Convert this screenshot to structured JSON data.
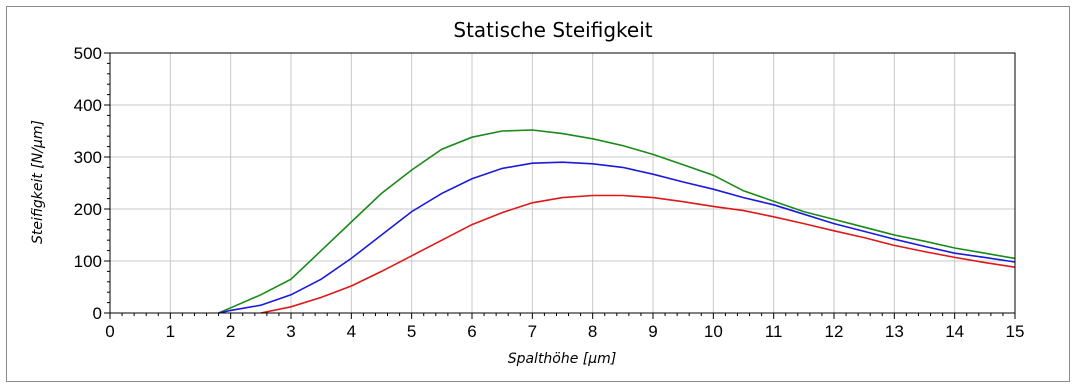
{
  "chart_data": {
    "type": "line",
    "title": "Statische Steifigkeit",
    "xlabel": "Spalthöhe [µm]",
    "ylabel": "Steifigkeit [N/µm]",
    "xlim": [
      0,
      15
    ],
    "ylim": [
      0,
      500
    ],
    "x_ticks": [
      "0",
      "1",
      "2",
      "3",
      "4",
      "5",
      "6",
      "7",
      "8",
      "9",
      "10",
      "11",
      "12",
      "13",
      "14",
      "15"
    ],
    "y_ticks": [
      "0",
      "100",
      "200",
      "300",
      "400",
      "500"
    ],
    "grid": true,
    "legend": "none",
    "series": [
      {
        "color": "#1a8a1a",
        "points": [
          [
            1.8,
            0
          ],
          [
            2,
            10
          ],
          [
            2.5,
            35
          ],
          [
            3,
            65
          ],
          [
            3.5,
            120
          ],
          [
            4,
            175
          ],
          [
            4.5,
            230
          ],
          [
            5,
            275
          ],
          [
            5.5,
            315
          ],
          [
            6,
            338
          ],
          [
            6.5,
            350
          ],
          [
            7,
            352
          ],
          [
            7.5,
            345
          ],
          [
            8,
            335
          ],
          [
            8.5,
            322
          ],
          [
            9,
            305
          ],
          [
            9.5,
            285
          ],
          [
            10,
            265
          ],
          [
            10.5,
            235
          ],
          [
            11,
            215
          ],
          [
            11.5,
            195
          ],
          [
            12,
            180
          ],
          [
            12.5,
            165
          ],
          [
            13,
            150
          ],
          [
            13.5,
            138
          ],
          [
            14,
            125
          ],
          [
            14.5,
            115
          ],
          [
            15,
            105
          ]
        ]
      },
      {
        "color": "#1a1adc",
        "points": [
          [
            1.8,
            0
          ],
          [
            2,
            5
          ],
          [
            2.5,
            15
          ],
          [
            3,
            35
          ],
          [
            3.5,
            65
          ],
          [
            4,
            105
          ],
          [
            4.5,
            150
          ],
          [
            5,
            195
          ],
          [
            5.5,
            230
          ],
          [
            6,
            258
          ],
          [
            6.5,
            278
          ],
          [
            7,
            288
          ],
          [
            7.5,
            290
          ],
          [
            8,
            287
          ],
          [
            8.5,
            280
          ],
          [
            9,
            267
          ],
          [
            9.5,
            252
          ],
          [
            10,
            238
          ],
          [
            10.5,
            222
          ],
          [
            11,
            208
          ],
          [
            11.5,
            190
          ],
          [
            12,
            172
          ],
          [
            12.5,
            157
          ],
          [
            13,
            142
          ],
          [
            13.5,
            128
          ],
          [
            14,
            115
          ],
          [
            14.5,
            107
          ],
          [
            15,
            98
          ]
        ]
      },
      {
        "color": "#e01818",
        "points": [
          [
            2.5,
            0
          ],
          [
            3,
            12
          ],
          [
            3.5,
            30
          ],
          [
            4,
            52
          ],
          [
            4.5,
            80
          ],
          [
            5,
            110
          ],
          [
            5.5,
            140
          ],
          [
            6,
            170
          ],
          [
            6.5,
            193
          ],
          [
            7,
            212
          ],
          [
            7.5,
            222
          ],
          [
            8,
            226
          ],
          [
            8.5,
            226
          ],
          [
            9,
            222
          ],
          [
            9.5,
            214
          ],
          [
            10,
            205
          ],
          [
            10.5,
            197
          ],
          [
            11,
            185
          ],
          [
            11.5,
            172
          ],
          [
            12,
            158
          ],
          [
            12.5,
            145
          ],
          [
            13,
            130
          ],
          [
            13.5,
            118
          ],
          [
            14,
            107
          ],
          [
            14.5,
            97
          ],
          [
            15,
            88
          ]
        ]
      }
    ]
  }
}
